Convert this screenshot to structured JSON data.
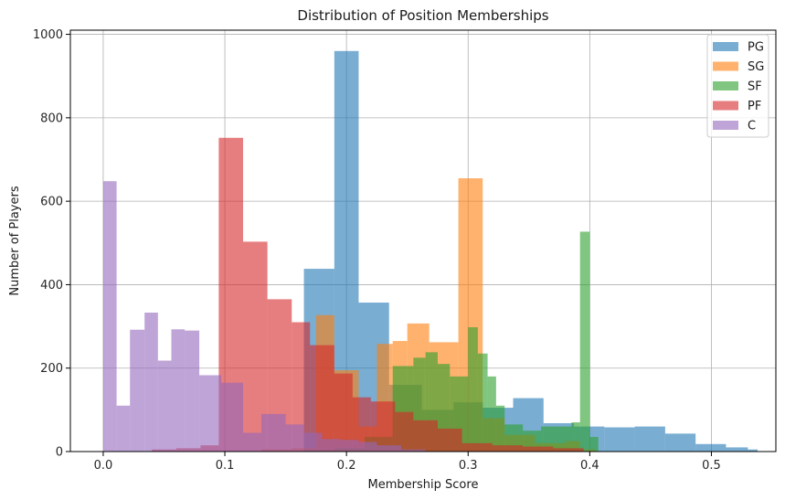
{
  "chart_data": {
    "type": "bar",
    "subtype": "overlapping-histogram",
    "title": "Distribution of Position Memberships",
    "xlabel": "Membership Score",
    "ylabel": "Number of Players",
    "xlim": [
      -0.027,
      0.553
    ],
    "ylim": [
      0,
      1010
    ],
    "xticks": [
      0.0,
      0.1,
      0.2,
      0.3,
      0.4,
      0.5
    ],
    "xtick_labels": [
      "0.0",
      "0.1",
      "0.2",
      "0.3",
      "0.4",
      "0.5"
    ],
    "yticks": [
      0,
      200,
      400,
      600,
      800,
      1000
    ],
    "ytick_labels": [
      "0",
      "200",
      "400",
      "600",
      "800",
      "1000"
    ],
    "grid": true,
    "legend_position": "top-right",
    "bar_alpha": 0.6,
    "series": [
      {
        "name": "PG",
        "color": "#1f77b4",
        "bins": [
          [
            0.165,
            0.19,
            438
          ],
          [
            0.19,
            0.21,
            960
          ],
          [
            0.21,
            0.235,
            357
          ],
          [
            0.235,
            0.262,
            160
          ],
          [
            0.262,
            0.288,
            100
          ],
          [
            0.288,
            0.312,
            118
          ],
          [
            0.312,
            0.337,
            105
          ],
          [
            0.337,
            0.362,
            128
          ],
          [
            0.362,
            0.387,
            68
          ],
          [
            0.387,
            0.412,
            60
          ],
          [
            0.412,
            0.437,
            58
          ],
          [
            0.437,
            0.462,
            60
          ],
          [
            0.462,
            0.487,
            43
          ],
          [
            0.487,
            0.512,
            18
          ],
          [
            0.512,
            0.53,
            10
          ],
          [
            0.53,
            0.538,
            5
          ]
        ]
      },
      {
        "name": "SG",
        "color": "#ff7f0e",
        "bins": [
          [
            0.13,
            0.155,
            5
          ],
          [
            0.155,
            0.175,
            8
          ],
          [
            0.175,
            0.19,
            327
          ],
          [
            0.19,
            0.21,
            195
          ],
          [
            0.21,
            0.225,
            60
          ],
          [
            0.225,
            0.238,
            258
          ],
          [
            0.238,
            0.25,
            265
          ],
          [
            0.25,
            0.268,
            307
          ],
          [
            0.268,
            0.292,
            262
          ],
          [
            0.292,
            0.312,
            655
          ],
          [
            0.312,
            0.33,
            80
          ],
          [
            0.33,
            0.355,
            40
          ],
          [
            0.355,
            0.38,
            20
          ],
          [
            0.38,
            0.392,
            25
          ],
          [
            0.392,
            0.405,
            5
          ]
        ]
      },
      {
        "name": "SF",
        "color": "#2ca02c",
        "bins": [
          [
            0.165,
            0.19,
            3
          ],
          [
            0.19,
            0.215,
            8
          ],
          [
            0.215,
            0.238,
            35
          ],
          [
            0.238,
            0.255,
            205
          ],
          [
            0.255,
            0.265,
            225
          ],
          [
            0.265,
            0.275,
            238
          ],
          [
            0.275,
            0.285,
            210
          ],
          [
            0.285,
            0.3,
            180
          ],
          [
            0.3,
            0.308,
            298
          ],
          [
            0.308,
            0.316,
            235
          ],
          [
            0.316,
            0.323,
            180
          ],
          [
            0.323,
            0.33,
            110
          ],
          [
            0.33,
            0.345,
            65
          ],
          [
            0.345,
            0.36,
            50
          ],
          [
            0.36,
            0.385,
            60
          ],
          [
            0.385,
            0.392,
            70
          ],
          [
            0.392,
            0.4,
            527
          ],
          [
            0.4,
            0.407,
            35
          ]
        ]
      },
      {
        "name": "PF",
        "color": "#d62728",
        "bins": [
          [
            0.04,
            0.06,
            5
          ],
          [
            0.06,
            0.08,
            8
          ],
          [
            0.08,
            0.095,
            15
          ],
          [
            0.095,
            0.115,
            752
          ],
          [
            0.115,
            0.135,
            503
          ],
          [
            0.135,
            0.155,
            365
          ],
          [
            0.155,
            0.17,
            310
          ],
          [
            0.17,
            0.19,
            255
          ],
          [
            0.19,
            0.205,
            187
          ],
          [
            0.205,
            0.22,
            130
          ],
          [
            0.22,
            0.24,
            120
          ],
          [
            0.24,
            0.255,
            95
          ],
          [
            0.255,
            0.275,
            75
          ],
          [
            0.275,
            0.295,
            55
          ],
          [
            0.295,
            0.32,
            20
          ],
          [
            0.32,
            0.345,
            15
          ],
          [
            0.345,
            0.37,
            12
          ],
          [
            0.37,
            0.395,
            8
          ]
        ]
      },
      {
        "name": "C",
        "color": "#9467bd",
        "bins": [
          [
            0.0,
            0.011,
            648
          ],
          [
            0.011,
            0.022,
            110
          ],
          [
            0.022,
            0.034,
            292
          ],
          [
            0.034,
            0.045,
            333
          ],
          [
            0.045,
            0.056,
            218
          ],
          [
            0.056,
            0.067,
            293
          ],
          [
            0.067,
            0.079,
            290
          ],
          [
            0.079,
            0.097,
            183
          ],
          [
            0.097,
            0.115,
            165
          ],
          [
            0.115,
            0.13,
            45
          ],
          [
            0.13,
            0.15,
            90
          ],
          [
            0.15,
            0.165,
            65
          ],
          [
            0.165,
            0.18,
            45
          ],
          [
            0.18,
            0.195,
            30
          ],
          [
            0.195,
            0.21,
            28
          ],
          [
            0.21,
            0.225,
            23
          ],
          [
            0.225,
            0.245,
            15
          ],
          [
            0.245,
            0.265,
            5
          ]
        ]
      }
    ]
  }
}
